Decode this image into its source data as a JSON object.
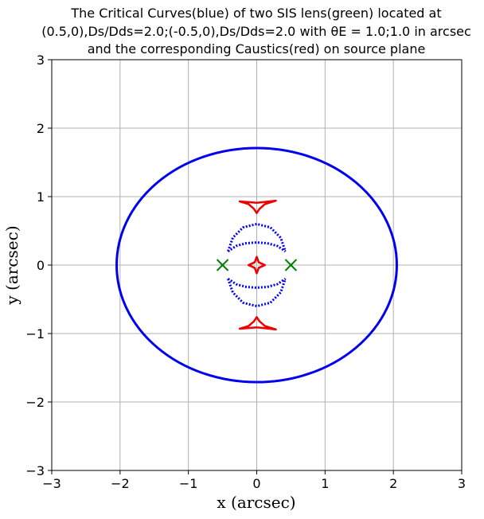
{
  "chart_data": {
    "type": "scatter",
    "title_lines": [
      "The Critical Curves(blue) of two SIS lens(green) located at",
      "(0.5,0),Ds/Dds=2.0;(-0.5,0),Ds/Dds=2.0 with θE = 1.0;1.0 in arcsec",
      "and the corresponding Caustics(red) on source plane"
    ],
    "xlabel": "x (arcsec)",
    "ylabel": "y (arcsec)",
    "xlim": [
      -3,
      3
    ],
    "ylim": [
      -3,
      3
    ],
    "xticks": [
      -3,
      -2,
      -1,
      0,
      1,
      2,
      3
    ],
    "yticks": [
      -3,
      -2,
      -1,
      0,
      1,
      2,
      3
    ],
    "xtick_labels": [
      "−3",
      "−2",
      "−1",
      "0",
      "1",
      "2",
      "3"
    ],
    "ytick_labels": [
      "−3",
      "−2",
      "−1",
      "0",
      "1",
      "2",
      "3"
    ],
    "grid": true,
    "lenses": {
      "color": "#008000",
      "points": [
        [
          -0.5,
          0
        ],
        [
          0.5,
          0
        ]
      ]
    },
    "critical_curves": {
      "color": "#0000ee",
      "outer_oval": {
        "center": [
          0,
          0
        ],
        "rx": 2.05,
        "ry": 1.71
      },
      "inner_arcs": [
        {
          "sign": 1,
          "points": [
            [
              -0.42,
              0.2
            ],
            [
              -0.35,
              0.4
            ],
            [
              -0.2,
              0.55
            ],
            [
              0,
              0.6
            ],
            [
              0.2,
              0.55
            ],
            [
              0.35,
              0.4
            ],
            [
              0.42,
              0.2
            ]
          ]
        },
        {
          "sign": 1,
          "points": [
            [
              -0.42,
              0.2
            ],
            [
              -0.3,
              0.28
            ],
            [
              -0.15,
              0.32
            ],
            [
              0,
              0.33
            ],
            [
              0.15,
              0.32
            ],
            [
              0.3,
              0.28
            ],
            [
              0.42,
              0.2
            ]
          ]
        },
        {
          "sign": -1,
          "points": [
            [
              -0.42,
              -0.2
            ],
            [
              -0.35,
              -0.4
            ],
            [
              -0.2,
              -0.55
            ],
            [
              0,
              -0.6
            ],
            [
              0.2,
              -0.55
            ],
            [
              0.35,
              -0.4
            ],
            [
              0.42,
              -0.2
            ]
          ]
        },
        {
          "sign": -1,
          "points": [
            [
              -0.42,
              -0.2
            ],
            [
              -0.3,
              -0.28
            ],
            [
              -0.15,
              -0.32
            ],
            [
              0,
              -0.33
            ],
            [
              0.15,
              -0.32
            ],
            [
              0.3,
              -0.28
            ],
            [
              0.42,
              -0.2
            ]
          ]
        }
      ]
    },
    "caustics": {
      "color": "#ee0000",
      "upper": [
        [
          -0.25,
          0.93
        ],
        [
          -0.12,
          0.89
        ],
        [
          -0.04,
          0.82
        ],
        [
          0,
          0.76
        ],
        [
          0.04,
          0.82
        ],
        [
          0.12,
          0.89
        ],
        [
          0.28,
          0.94
        ],
        [
          0.1,
          0.92
        ],
        [
          0,
          0.91
        ],
        [
          -0.12,
          0.92
        ],
        [
          -0.25,
          0.93
        ]
      ],
      "lower": [
        [
          -0.25,
          -0.93
        ],
        [
          -0.12,
          -0.89
        ],
        [
          -0.04,
          -0.82
        ],
        [
          0,
          -0.76
        ],
        [
          0.04,
          -0.82
        ],
        [
          0.12,
          -0.89
        ],
        [
          0.28,
          -0.94
        ],
        [
          0.1,
          -0.92
        ],
        [
          0,
          -0.91
        ],
        [
          -0.12,
          -0.92
        ],
        [
          -0.25,
          -0.93
        ]
      ],
      "center": [
        [
          0,
          0.12
        ],
        [
          0.03,
          0.04
        ],
        [
          0.12,
          0
        ],
        [
          0.03,
          -0.04
        ],
        [
          0,
          -0.12
        ],
        [
          -0.03,
          -0.04
        ],
        [
          -0.12,
          0
        ],
        [
          -0.03,
          0.04
        ],
        [
          0,
          0.12
        ]
      ]
    }
  }
}
